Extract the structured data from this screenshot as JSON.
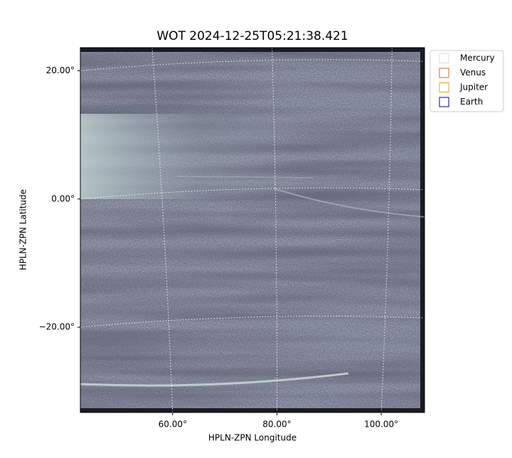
{
  "chart_data": {
    "type": "image",
    "title": "WOT 2024-12-25T05:21:38.421",
    "x_label": "HPLN-ZPN Longitude",
    "y_label": "HPLN-ZPN Latitude",
    "xlim": [
      42.3,
      108.3
    ],
    "ylim": [
      -33.3,
      23.6
    ],
    "xticks": [
      {
        "value": 60,
        "label": "60.00°"
      },
      {
        "value": 80,
        "label": "80.00°"
      },
      {
        "value": 100,
        "label": "100.00°"
      }
    ],
    "yticks": [
      {
        "value": -20,
        "label": "−20.00°"
      },
      {
        "value": 0,
        "label": "0.00°"
      },
      {
        "value": 20,
        "label": "20.00°"
      }
    ],
    "grid": true,
    "legend_position": "outside-upper-right",
    "series": [
      {
        "name": "Mercury",
        "color": "#dddddd"
      },
      {
        "name": "Venus",
        "color": "#d2691e"
      },
      {
        "name": "Jupiter",
        "color": "#daa520"
      },
      {
        "name": "Earth",
        "color": "#000080"
      }
    ]
  }
}
